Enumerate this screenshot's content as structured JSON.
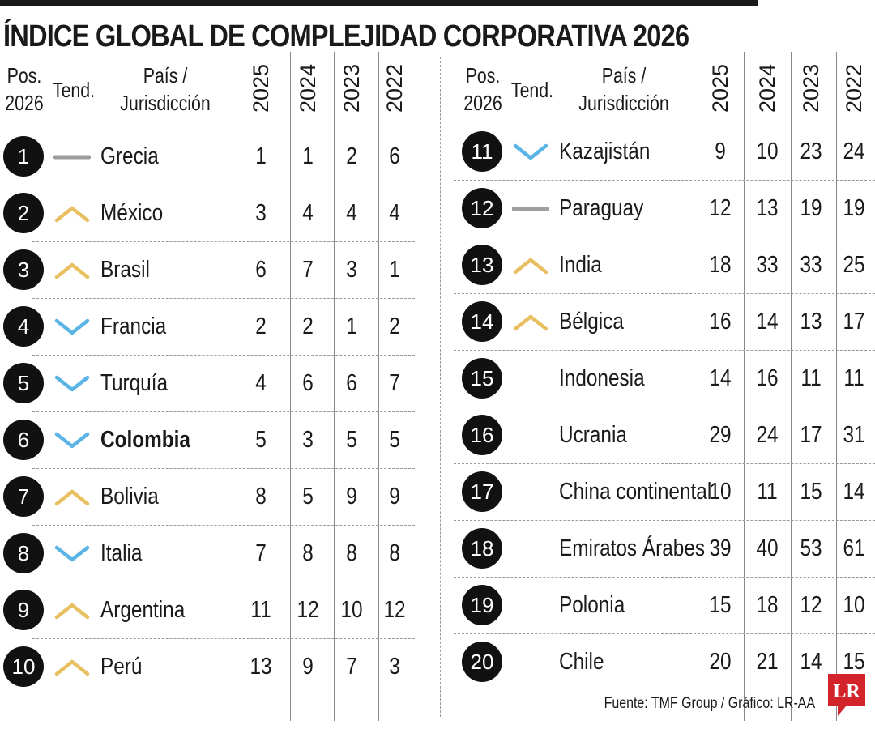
{
  "title": "ÍNDICE GLOBAL DE COMPLEJIDAD CORPORATIVA 2026",
  "headers": {
    "pos_line1": "Pos.",
    "pos_line2": "2026",
    "trend": "Tend.",
    "country_line1": "País /",
    "country_line2": "Jurisdicción",
    "years": [
      "2025",
      "2024",
      "2023",
      "2022"
    ]
  },
  "colors": {
    "up": "#e8c062",
    "down": "#5ab4e5",
    "same": "#9e9e9e",
    "circle": "#111111",
    "logo_red": "#d4242b"
  },
  "source": "Fuente: TMF Group / Gráfico: LR-AA",
  "logo_text": "LR",
  "chart_data": {
    "type": "table",
    "title": "ÍNDICE GLOBAL DE COMPLEJIDAD CORPORATIVA 2026",
    "columns": [
      "Pos. 2026",
      "Tend.",
      "País / Jurisdicción",
      "2025",
      "2024",
      "2023",
      "2022"
    ],
    "rows": [
      {
        "pos": "1",
        "trend": "same",
        "country": "Grecia",
        "y2025": "1",
        "y2024": "1",
        "y2023": "2",
        "y2022": "6"
      },
      {
        "pos": "2",
        "trend": "up",
        "country": "México",
        "y2025": "3",
        "y2024": "4",
        "y2023": "4",
        "y2022": "4"
      },
      {
        "pos": "3",
        "trend": "up",
        "country": "Brasil",
        "y2025": "6",
        "y2024": "7",
        "y2023": "3",
        "y2022": "1"
      },
      {
        "pos": "4",
        "trend": "down",
        "country": "Francia",
        "y2025": "2",
        "y2024": "2",
        "y2023": "1",
        "y2022": "2"
      },
      {
        "pos": "5",
        "trend": "down",
        "country": "Turquía",
        "y2025": "4",
        "y2024": "6",
        "y2023": "6",
        "y2022": "7"
      },
      {
        "pos": "6",
        "trend": "down",
        "country": "Colombia",
        "bold": true,
        "y2025": "5",
        "y2024": "3",
        "y2023": "5",
        "y2022": "5"
      },
      {
        "pos": "7",
        "trend": "up",
        "country": "Bolivia",
        "y2025": "8",
        "y2024": "5",
        "y2023": "9",
        "y2022": "9"
      },
      {
        "pos": "8",
        "trend": "down",
        "country": "Italia",
        "y2025": "7",
        "y2024": "8",
        "y2023": "8",
        "y2022": "8"
      },
      {
        "pos": "9",
        "trend": "up",
        "country": "Argentina",
        "y2025": "11",
        "y2024": "12",
        "y2023": "10",
        "y2022": "12"
      },
      {
        "pos": "10",
        "trend": "up",
        "country": "Perú",
        "y2025": "13",
        "y2024": "9",
        "y2023": "7",
        "y2022": "3"
      },
      {
        "pos": "11",
        "trend": "down",
        "country": "Kazajistán",
        "y2025": "9",
        "y2024": "10",
        "y2023": "23",
        "y2022": "24"
      },
      {
        "pos": "12",
        "trend": "same",
        "country": "Paraguay",
        "y2025": "12",
        "y2024": "13",
        "y2023": "19",
        "y2022": "19"
      },
      {
        "pos": "13",
        "trend": "up",
        "country": "India",
        "y2025": "18",
        "y2024": "33",
        "y2023": "33",
        "y2022": "25"
      },
      {
        "pos": "14",
        "trend": "up",
        "country": "Bélgica",
        "y2025": "16",
        "y2024": "14",
        "y2023": "13",
        "y2022": "17"
      },
      {
        "pos": "15",
        "trend": "none",
        "country": "Indonesia",
        "y2025": "14",
        "y2024": "16",
        "y2023": "11",
        "y2022": "11"
      },
      {
        "pos": "16",
        "trend": "none",
        "country": "Ucrania",
        "y2025": "29",
        "y2024": "24",
        "y2023": "17",
        "y2022": "31"
      },
      {
        "pos": "17",
        "trend": "none",
        "country": "China continental",
        "y2025": "10",
        "y2024": "11",
        "y2023": "15",
        "y2022": "14"
      },
      {
        "pos": "18",
        "trend": "none",
        "country": "Emiratos Árabes",
        "y2025": "39",
        "y2024": "40",
        "y2023": "53",
        "y2022": "61"
      },
      {
        "pos": "19",
        "trend": "none",
        "country": "Polonia",
        "y2025": "15",
        "y2024": "18",
        "y2023": "12",
        "y2022": "10"
      },
      {
        "pos": "20",
        "trend": "none",
        "country": "Chile",
        "y2025": "20",
        "y2024": "21",
        "y2023": "14",
        "y2022": "15"
      }
    ]
  }
}
